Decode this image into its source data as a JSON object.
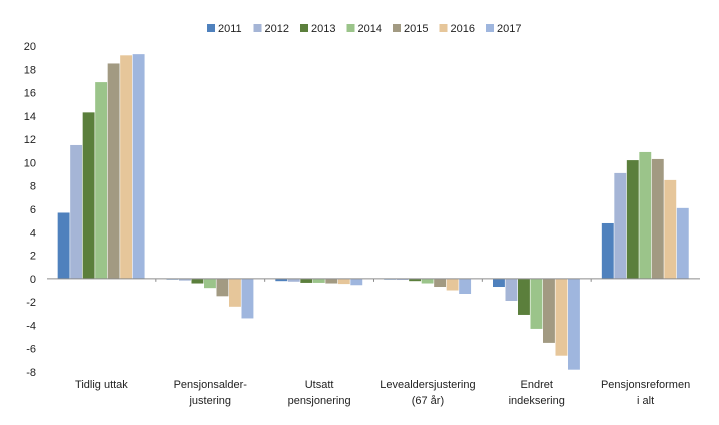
{
  "chart_data": {
    "type": "bar",
    "categories": [
      [
        "Tidlig uttak"
      ],
      [
        "Pensjonsalder-",
        "justering"
      ],
      [
        "Utsatt",
        "pensjonering"
      ],
      [
        "Levealdersjustering",
        "(67 år)"
      ],
      [
        "Endret",
        "indeksering"
      ],
      [
        "Pensjonsreformen",
        "i alt"
      ]
    ],
    "series": [
      {
        "name": "2011",
        "color": "#4f81bd",
        "values": [
          5.7,
          -0.05,
          -0.2,
          -0.05,
          -0.7,
          4.8
        ]
      },
      {
        "name": "2012",
        "color": "#a5b5d6",
        "values": [
          11.5,
          -0.15,
          -0.25,
          -0.1,
          -1.9,
          9.1
        ]
      },
      {
        "name": "2013",
        "color": "#5b7f3c",
        "values": [
          14.3,
          -0.4,
          -0.35,
          -0.2,
          -3.1,
          10.2
        ]
      },
      {
        "name": "2014",
        "color": "#9bc48a",
        "values": [
          16.9,
          -0.8,
          -0.35,
          -0.4,
          -4.3,
          10.9
        ]
      },
      {
        "name": "2015",
        "color": "#a29a82",
        "values": [
          18.5,
          -1.5,
          -0.4,
          -0.7,
          -5.5,
          10.3
        ]
      },
      {
        "name": "2016",
        "color": "#e6c69a",
        "values": [
          19.2,
          -2.4,
          -0.45,
          -1.0,
          -6.6,
          8.5
        ]
      },
      {
        "name": "2017",
        "color": "#9fb6de",
        "values": [
          19.3,
          -3.4,
          -0.55,
          -1.3,
          -7.8,
          6.1
        ]
      }
    ],
    "ylim": [
      -8,
      20
    ],
    "yticks": [
      "20",
      "18",
      "16",
      "14",
      "12",
      "10",
      "8",
      "6",
      "4",
      "2",
      "0",
      "-2",
      "-4",
      "-6",
      "-8"
    ],
    "legend_position": "top-center",
    "grid": false,
    "title": "",
    "xlabel": "",
    "ylabel": ""
  }
}
